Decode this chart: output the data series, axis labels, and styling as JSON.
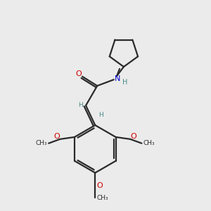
{
  "bg_color": "#ebebeb",
  "bond_color": "#2a2a2a",
  "oxygen_color": "#cc0000",
  "nitrogen_color": "#0000cc",
  "hydrogen_color": "#4a8a8a",
  "line_width": 1.6,
  "fig_size": [
    3.0,
    3.0
  ],
  "dpi": 100,
  "xlim": [
    0,
    10
  ],
  "ylim": [
    0,
    10
  ]
}
